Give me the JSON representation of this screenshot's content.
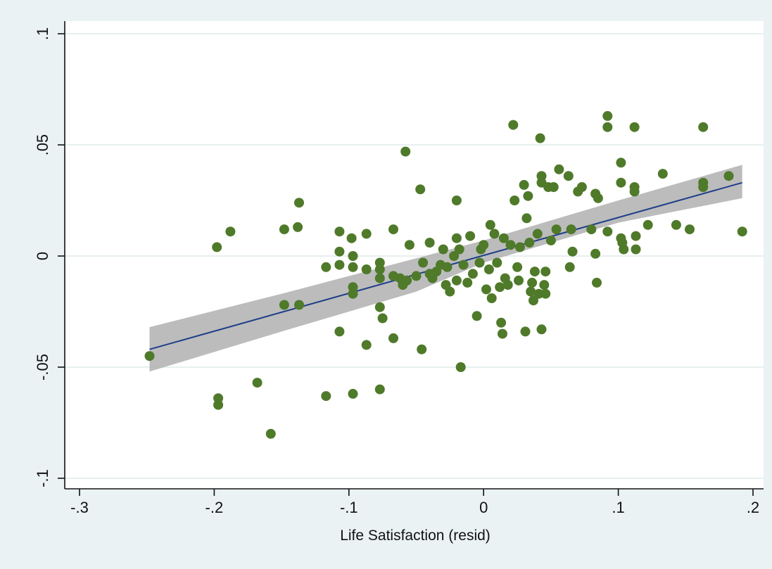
{
  "chart_data": {
    "type": "scatter",
    "title": "",
    "xlabel": "Life Satisfaction (resid)",
    "ylabel": "",
    "xlim": [
      -0.3,
      0.2
    ],
    "ylim": [
      -0.1,
      0.1
    ],
    "x_ticks": [
      {
        "value": -0.3,
        "label": "-.3"
      },
      {
        "value": -0.2,
        "label": "-.2"
      },
      {
        "value": -0.1,
        "label": "-.1"
      },
      {
        "value": 0,
        "label": "0"
      },
      {
        "value": 0.1,
        "label": ".1"
      },
      {
        "value": 0.2,
        "label": ".2"
      }
    ],
    "y_ticks": [
      {
        "value": -0.1,
        "label": "-.1"
      },
      {
        "value": -0.05,
        "label": "-.05"
      },
      {
        "value": 0,
        "label": "0"
      },
      {
        "value": 0.05,
        "label": ".05"
      },
      {
        "value": 0.1,
        "label": ".1"
      }
    ],
    "grid": "horizontal",
    "colors": {
      "points": "#4f7a2a",
      "fit_line": "#1f3f8a",
      "ci_band": "#b0b0b0",
      "plot_bg": "#ffffff",
      "outer_bg": "#eaf2f3",
      "grid": "#dfeaea"
    },
    "fit": {
      "x": [
        -0.248,
        0.192
      ],
      "y": [
        -0.042,
        0.033
      ]
    },
    "ci_band": {
      "x": [
        -0.248,
        -0.15,
        -0.05,
        0.0,
        0.05,
        0.1,
        0.192
      ],
      "lower": [
        -0.052,
        -0.034,
        -0.016,
        -0.003,
        0.006,
        0.015,
        0.026
      ],
      "upper": [
        -0.032,
        -0.017,
        -0.001,
        0.007,
        0.016,
        0.025,
        0.041
      ]
    },
    "points": [
      [
        -0.248,
        -0.045
      ],
      [
        -0.198,
        0.004
      ],
      [
        -0.188,
        0.011
      ],
      [
        -0.197,
        -0.064
      ],
      [
        -0.197,
        -0.067
      ],
      [
        -0.168,
        -0.057
      ],
      [
        -0.158,
        -0.08
      ],
      [
        -0.148,
        0.012
      ],
      [
        -0.138,
        0.013
      ],
      [
        -0.137,
        0.024
      ],
      [
        -0.148,
        -0.022
      ],
      [
        -0.137,
        -0.022
      ],
      [
        -0.117,
        -0.005
      ],
      [
        -0.117,
        -0.063
      ],
      [
        -0.097,
        -0.062
      ],
      [
        -0.107,
        0.011
      ],
      [
        -0.107,
        0.002
      ],
      [
        -0.107,
        -0.004
      ],
      [
        -0.098,
        0.008
      ],
      [
        -0.097,
        0.0
      ],
      [
        -0.097,
        -0.005
      ],
      [
        -0.097,
        -0.014
      ],
      [
        -0.097,
        -0.017
      ],
      [
        -0.107,
        -0.034
      ],
      [
        -0.087,
        0.01
      ],
      [
        -0.087,
        -0.006
      ],
      [
        -0.087,
        -0.04
      ],
      [
        -0.077,
        -0.023
      ],
      [
        -0.077,
        -0.003
      ],
      [
        -0.077,
        -0.006
      ],
      [
        -0.077,
        -0.01
      ],
      [
        -0.077,
        -0.06
      ],
      [
        -0.075,
        -0.028
      ],
      [
        -0.067,
        -0.037
      ],
      [
        -0.067,
        -0.009
      ],
      [
        -0.067,
        0.012
      ],
      [
        -0.062,
        -0.01
      ],
      [
        -0.06,
        -0.013
      ],
      [
        -0.058,
        0.047
      ],
      [
        -0.057,
        -0.011
      ],
      [
        -0.055,
        0.005
      ],
      [
        -0.05,
        -0.009
      ],
      [
        -0.047,
        0.03
      ],
      [
        -0.046,
        -0.042
      ],
      [
        -0.045,
        -0.003
      ],
      [
        -0.04,
        0.006
      ],
      [
        -0.04,
        -0.008
      ],
      [
        -0.038,
        -0.01
      ],
      [
        -0.035,
        -0.007
      ],
      [
        -0.032,
        -0.004
      ],
      [
        -0.03,
        0.003
      ],
      [
        -0.028,
        -0.013
      ],
      [
        -0.027,
        -0.005
      ],
      [
        -0.025,
        -0.016
      ],
      [
        -0.022,
        0.0
      ],
      [
        -0.02,
        0.025
      ],
      [
        -0.02,
        0.008
      ],
      [
        -0.02,
        -0.011
      ],
      [
        -0.018,
        0.003
      ],
      [
        -0.017,
        -0.05
      ],
      [
        -0.015,
        -0.004
      ],
      [
        -0.012,
        -0.012
      ],
      [
        -0.01,
        0.009
      ],
      [
        -0.008,
        -0.008
      ],
      [
        -0.005,
        -0.027
      ],
      [
        -0.003,
        -0.003
      ],
      [
        -0.002,
        0.003
      ],
      [
        0.0,
        0.005
      ],
      [
        0.002,
        -0.015
      ],
      [
        0.004,
        -0.006
      ],
      [
        0.005,
        0.014
      ],
      [
        0.006,
        -0.019
      ],
      [
        0.008,
        0.01
      ],
      [
        0.01,
        -0.003
      ],
      [
        0.012,
        -0.014
      ],
      [
        0.013,
        -0.03
      ],
      [
        0.014,
        -0.035
      ],
      [
        0.015,
        0.008
      ],
      [
        0.016,
        -0.01
      ],
      [
        0.018,
        -0.013
      ],
      [
        0.02,
        0.005
      ],
      [
        0.022,
        0.059
      ],
      [
        0.023,
        0.025
      ],
      [
        0.025,
        -0.005
      ],
      [
        0.026,
        -0.011
      ],
      [
        0.027,
        0.004
      ],
      [
        0.03,
        0.032
      ],
      [
        0.031,
        -0.034
      ],
      [
        0.032,
        0.017
      ],
      [
        0.033,
        0.027
      ],
      [
        0.034,
        0.006
      ],
      [
        0.035,
        -0.016
      ],
      [
        0.036,
        -0.012
      ],
      [
        0.037,
        -0.02
      ],
      [
        0.038,
        -0.007
      ],
      [
        0.04,
        0.01
      ],
      [
        0.041,
        -0.017
      ],
      [
        0.042,
        0.053
      ],
      [
        0.043,
        0.036
      ],
      [
        0.043,
        0.033
      ],
      [
        0.043,
        -0.033
      ],
      [
        0.045,
        -0.013
      ],
      [
        0.046,
        -0.007
      ],
      [
        0.046,
        -0.017
      ],
      [
        0.048,
        0.031
      ],
      [
        0.05,
        0.007
      ],
      [
        0.052,
        0.031
      ],
      [
        0.054,
        0.012
      ],
      [
        0.056,
        0.039
      ],
      [
        0.063,
        0.036
      ],
      [
        0.064,
        -0.005
      ],
      [
        0.065,
        0.012
      ],
      [
        0.066,
        0.002
      ],
      [
        0.07,
        0.029
      ],
      [
        0.073,
        0.031
      ],
      [
        0.08,
        0.012
      ],
      [
        0.083,
        0.028
      ],
      [
        0.083,
        0.001
      ],
      [
        0.084,
        -0.012
      ],
      [
        0.085,
        0.026
      ],
      [
        0.092,
        0.063
      ],
      [
        0.092,
        0.058
      ],
      [
        0.092,
        0.011
      ],
      [
        0.102,
        0.042
      ],
      [
        0.102,
        0.033
      ],
      [
        0.102,
        0.008
      ],
      [
        0.103,
        0.006
      ],
      [
        0.104,
        0.003
      ],
      [
        0.112,
        0.058
      ],
      [
        0.112,
        0.031
      ],
      [
        0.112,
        0.029
      ],
      [
        0.113,
        0.009
      ],
      [
        0.113,
        0.003
      ],
      [
        0.122,
        0.014
      ],
      [
        0.133,
        0.037
      ],
      [
        0.143,
        0.014
      ],
      [
        0.153,
        0.012
      ],
      [
        0.163,
        0.058
      ],
      [
        0.163,
        0.033
      ],
      [
        0.163,
        0.031
      ],
      [
        0.182,
        0.036
      ],
      [
        0.192,
        0.011
      ]
    ]
  }
}
